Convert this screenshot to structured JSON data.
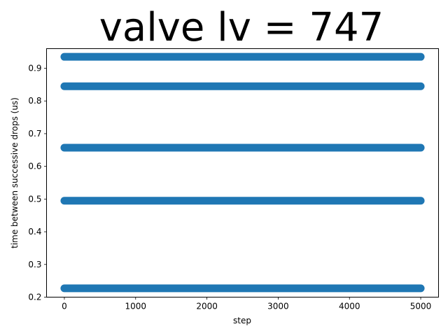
{
  "chart_data": {
    "type": "scatter",
    "title": "valve lv = 747",
    "xlabel": "step",
    "ylabel": "time between successive drops (us)",
    "xlim": [
      -250,
      5250
    ],
    "ylim": [
      0.2,
      0.96
    ],
    "xticks": [
      0,
      1000,
      2000,
      3000,
      4000,
      5000
    ],
    "xtick_labels": [
      "0",
      "1000",
      "2000",
      "3000",
      "4000",
      "5000"
    ],
    "yticks": [
      0.2,
      0.3,
      0.4,
      0.5,
      0.6,
      0.7,
      0.8,
      0.9
    ],
    "ytick_labels": [
      "0.2",
      "0.3",
      "0.4",
      "0.5",
      "0.6",
      "0.7",
      "0.8",
      "0.9"
    ],
    "grid": false,
    "legend": "none",
    "series": [
      {
        "color": "#1f77b4",
        "x_range": [
          0,
          5000
        ],
        "y_levels": [
          0.935,
          0.845,
          0.657,
          0.495,
          0.227
        ]
      }
    ]
  }
}
